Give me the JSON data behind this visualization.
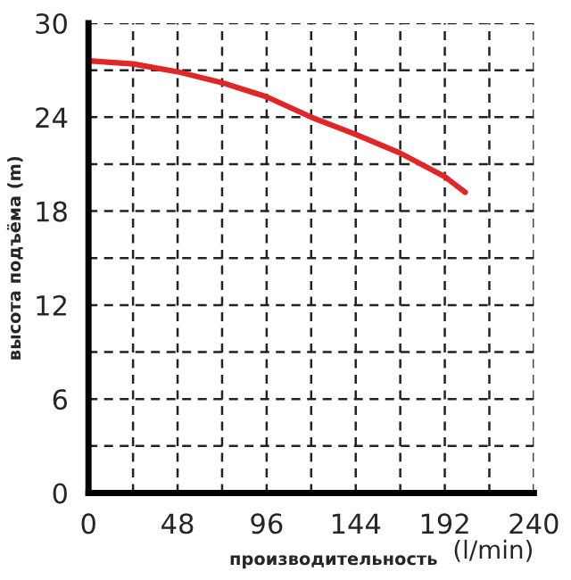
{
  "chart_data": {
    "type": "line",
    "xlabel": "производительность",
    "ylabel": "высота подъёма (m)",
    "annotations": [
      "(l/min)"
    ],
    "x": [
      0,
      12,
      24,
      48,
      72,
      96,
      120,
      144,
      168,
      192,
      203
    ],
    "series": [
      {
        "color": "#e02727",
        "values": [
          27.6,
          27.5,
          27.4,
          26.9,
          26.2,
          25.3,
          24.0,
          22.9,
          21.7,
          20.2,
          19.2
        ]
      }
    ],
    "xlim": [
      0,
      240
    ],
    "ylim": [
      0,
      30
    ],
    "xticks": [
      0,
      {
        "value": 24,
        "label": null
      },
      48,
      {
        "value": 72,
        "label": null
      },
      96,
      {
        "value": 120,
        "label": null
      },
      144,
      {
        "value": 168,
        "label": null
      },
      192,
      {
        "value": 216,
        "label": null
      },
      240
    ],
    "yticks": [
      0,
      {
        "value": 3,
        "label": null
      },
      6,
      {
        "value": 9,
        "label": null
      },
      12,
      {
        "value": 15,
        "label": null
      },
      18,
      {
        "value": 21,
        "label": null
      },
      24,
      {
        "value": 27,
        "label": null
      },
      30
    ],
    "grid": true,
    "marker": "none",
    "line_style": "solid",
    "legend": false
  }
}
